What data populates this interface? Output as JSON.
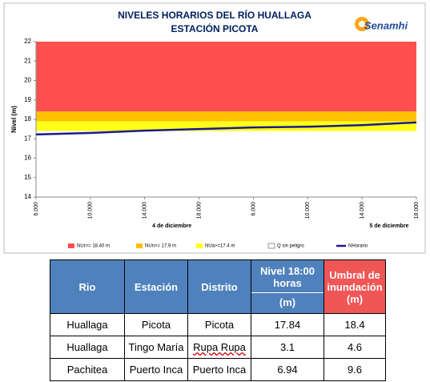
{
  "chart_data": {
    "type": "line",
    "title": "NIVELES HORARIOS DEL RÍO HUALLAGA",
    "subtitle": "ESTACIÓN PICOTA",
    "logo": "Senamhi",
    "y_label": "Nivel (m)",
    "categories": [
      "6.000",
      "10.000",
      "14.000",
      "18.000",
      "6.000",
      "10.000",
      "14.000",
      "18.000"
    ],
    "day_labels": [
      "4 de diciembre",
      "5 de diciembre"
    ],
    "ylim": [
      14,
      22
    ],
    "yticks": [
      14,
      15,
      16,
      17,
      18,
      19,
      20,
      21,
      22
    ],
    "thresholds": [
      {
        "name": "NUr>= 18.40 m",
        "color": "#ff4f4f",
        "value": 18.4
      },
      {
        "name": "NUn>= 17.9 m",
        "color": "#ffc000",
        "value": 17.9
      },
      {
        "name": "NUa>=17.4 m",
        "color": "#ffff1a",
        "value": 17.4
      }
    ],
    "base_band": {
      "name": "Q sin peligro",
      "color": "#ffffff"
    },
    "series": [
      {
        "name": "NHorario",
        "color": "#1a1a8c",
        "values": [
          17.22,
          17.3,
          17.42,
          17.5,
          17.58,
          17.62,
          17.7,
          17.84
        ]
      }
    ]
  },
  "table": {
    "headers": [
      "Rio",
      "Estación",
      "Distrito",
      [
        "Nivel 18:00 horas",
        "(m)"
      ],
      "Umbral de inundación (m)"
    ],
    "rows": [
      [
        "Huallaga",
        "Picota",
        "Picota",
        "17.84",
        "18.4"
      ],
      [
        "Huallaga",
        "Tingo María",
        "Rupa Rupa",
        "3.1",
        "4.6"
      ],
      [
        "Pachitea",
        "Puerto Inca",
        "Puerto Inca",
        "6.94",
        "9.6"
      ]
    ]
  }
}
